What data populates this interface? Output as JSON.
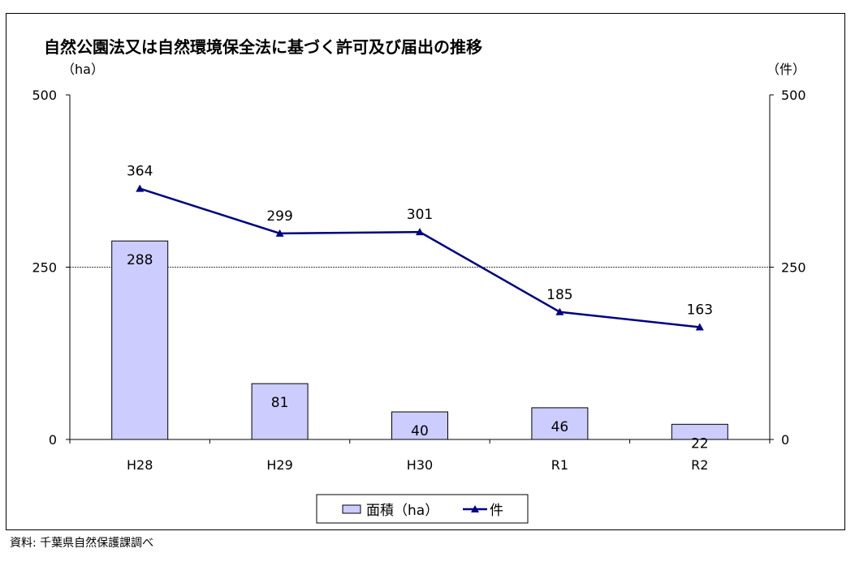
{
  "chart_data": {
    "type": "bar+line",
    "title": "自然公園法又は自然環境保全法に基づく許可及び届出の推移",
    "left_unit": "（ha）",
    "right_unit": "（件）",
    "categories": [
      "H28",
      "H29",
      "H30",
      "R1",
      "R2"
    ],
    "y_left_ticks": [
      "500",
      "250",
      "0"
    ],
    "y_right_ticks": [
      "500",
      "250",
      "0"
    ],
    "ylim_left": [
      0,
      500
    ],
    "ylim_right": [
      0,
      500
    ],
    "gridlines": [
      250
    ],
    "series": [
      {
        "name": "面積（ha）",
        "type": "bar",
        "axis": "left",
        "values": [
          288,
          81,
          40,
          46,
          22
        ],
        "color": "#ccccff"
      },
      {
        "name": "件",
        "type": "line",
        "axis": "right",
        "values": [
          364,
          299,
          301,
          185,
          163
        ],
        "color": "#000080"
      }
    ],
    "legend_position": "bottom"
  },
  "source_note": "資料: 千葉県自然保護課調べ"
}
